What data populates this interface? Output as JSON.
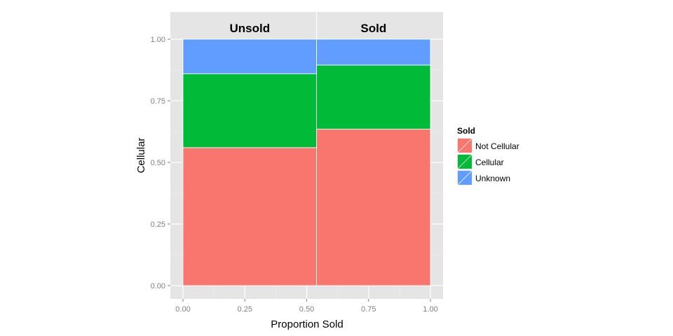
{
  "chart_data": {
    "type": "mosaic",
    "xlabel": "Proportion Sold",
    "ylabel": "Cellular",
    "xlim": [
      0,
      1
    ],
    "ylim": [
      0,
      1
    ],
    "x_ticks": [
      "0.00",
      "0.25",
      "0.50",
      "0.75",
      "1.00"
    ],
    "y_ticks": [
      "0.00",
      "0.25",
      "0.50",
      "0.75",
      "1.00"
    ],
    "grid": true,
    "facets": [
      {
        "label": "Unsold",
        "x_start": 0.0,
        "x_end": 0.54
      },
      {
        "label": "Sold",
        "x_start": 0.54,
        "x_end": 1.0
      }
    ],
    "legend": {
      "title": "Sold",
      "position": "right",
      "entries": [
        {
          "label": "Not Cellular",
          "color": "#F8766D"
        },
        {
          "label": "Cellular",
          "color": "#00BA38"
        },
        {
          "label": "Unknown",
          "color": "#619CFF"
        }
      ]
    },
    "series": [
      {
        "name": "Not Cellular",
        "color": "#F8766D",
        "values": [
          0.56,
          0.635
        ]
      },
      {
        "name": "Cellular",
        "color": "#00BA38",
        "values": [
          0.3,
          0.26
        ]
      },
      {
        "name": "Unknown",
        "color": "#619CFF",
        "values": [
          0.14,
          0.105
        ]
      }
    ],
    "categories": [
      "Unsold",
      "Sold"
    ]
  }
}
